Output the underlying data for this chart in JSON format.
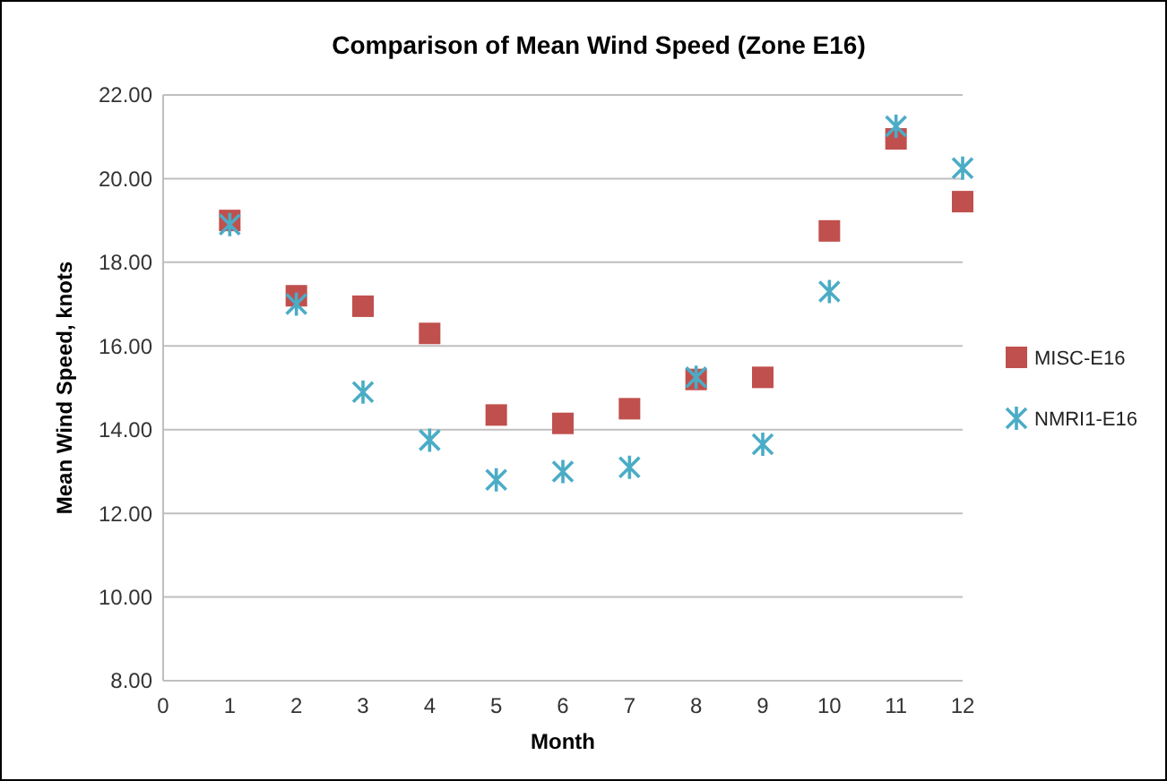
{
  "chart_data": {
    "type": "scatter",
    "title": "Comparison of Mean Wind Speed (Zone E16)",
    "xlabel": "Month",
    "ylabel": "Mean Wind Speed, knots",
    "x": [
      1,
      2,
      3,
      4,
      5,
      6,
      7,
      8,
      9,
      10,
      11,
      12
    ],
    "series": [
      {
        "name": "MISC-E16",
        "color": "#c0504d",
        "marker": "square",
        "values": [
          19.0,
          17.2,
          16.95,
          16.3,
          14.35,
          14.15,
          14.5,
          15.2,
          15.25,
          18.75,
          20.95,
          19.45
        ]
      },
      {
        "name": "NMRI1-E16",
        "color": "#4bacc6",
        "marker": "cross",
        "values": [
          18.9,
          17.0,
          14.9,
          13.75,
          12.8,
          13.0,
          13.1,
          15.25,
          13.65,
          17.3,
          21.25,
          20.25
        ]
      }
    ],
    "xlim": [
      0,
      12
    ],
    "xticks": [
      0,
      1,
      2,
      3,
      4,
      5,
      6,
      7,
      8,
      9,
      10,
      11,
      12
    ],
    "ylim": [
      8,
      22
    ],
    "yticks": [
      {
        "value": 8,
        "label": "8.00"
      },
      {
        "value": 10,
        "label": "10.00"
      },
      {
        "value": 12,
        "label": "12.00"
      },
      {
        "value": 14,
        "label": "14.00"
      },
      {
        "value": 16,
        "label": "16.00"
      },
      {
        "value": 18,
        "label": "18.00"
      },
      {
        "value": 20,
        "label": "20.00"
      },
      {
        "value": 22,
        "label": "22.00"
      }
    ],
    "grid": "y",
    "legend": "right"
  }
}
